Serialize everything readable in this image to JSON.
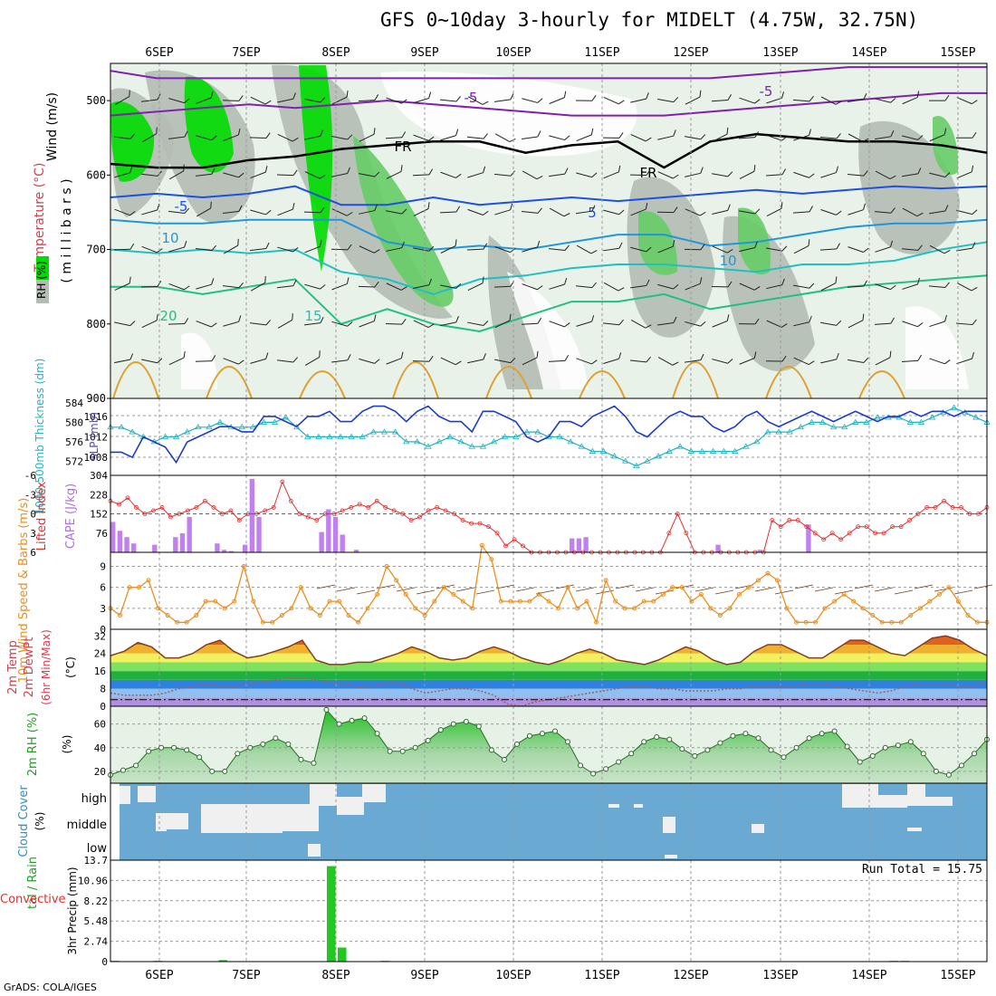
{
  "title": "GFS 0~10day 3-hourly for MIDELT (4.75W, 32.75N)",
  "credit": "GrADS: COLA/IGES",
  "dates": [
    "6SEP",
    "7SEP",
    "8SEP",
    "9SEP",
    "10SEP",
    "11SEP",
    "12SEP",
    "13SEP",
    "14SEP",
    "15SEP"
  ],
  "colors": {
    "rh_green": "#00dd00",
    "rh_gray": "#b4bcb4",
    "rh_light": "#e8f2e8",
    "slp": "#1e3cc8",
    "thickness": "#20b4c0",
    "cape": "#c080f0",
    "lifted_index": "#e03030",
    "wind_speed": "#e89020",
    "cloud_blue": "#6aaad2",
    "precip": "#20c820"
  },
  "chart_data": [
    {
      "type": "area",
      "panel": "upper-air",
      "ylabel_rh": "RH (%)",
      "ylabel_temp": "Temperature (°C)",
      "ylabel_wind": "Wind (m/s)",
      "ylabel_p": "( m i l l i b a r s )",
      "yticks": [
        500,
        600,
        700,
        800,
        900
      ],
      "ylim": [
        450,
        900
      ],
      "temperature_contour_labels": [
        "-5",
        "-5",
        "FR",
        "FR",
        "-5",
        "5",
        "10",
        "10",
        "15",
        "20"
      ],
      "isotherms": [
        {
          "label": "-5",
          "color": "#8020b0",
          "values_p": [
            460,
            470,
            470,
            470,
            470,
            470,
            470,
            470,
            470,
            470,
            470,
            470,
            470,
            470,
            465,
            460,
            455,
            455,
            455,
            455
          ]
        },
        {
          "label": "-5",
          "color": "#8020b0",
          "values_p": [
            520,
            515,
            510,
            505,
            510,
            505,
            500,
            505,
            510,
            515,
            520,
            520,
            520,
            515,
            510,
            505,
            500,
            495,
            490,
            490
          ]
        },
        {
          "label": "FR",
          "color": "#000000",
          "values_p": [
            585,
            590,
            590,
            580,
            575,
            565,
            560,
            555,
            555,
            570,
            560,
            555,
            590,
            555,
            545,
            550,
            555,
            555,
            560,
            570
          ]
        },
        {
          "label": "-5",
          "color": "#1e50e0",
          "values_p": [
            630,
            625,
            630,
            625,
            615,
            640,
            640,
            630,
            640,
            635,
            630,
            635,
            630,
            625,
            620,
            625,
            620,
            615,
            618,
            615
          ]
        },
        {
          "label": "10",
          "color": "#1e96dc",
          "values_p": [
            660,
            665,
            665,
            660,
            660,
            660,
            690,
            700,
            695,
            700,
            690,
            680,
            680,
            695,
            690,
            680,
            670,
            665,
            665,
            660
          ]
        },
        {
          "label": "15",
          "color": "#20c0c0",
          "values_p": [
            700,
            705,
            700,
            705,
            700,
            730,
            740,
            760,
            740,
            735,
            725,
            720,
            720,
            725,
            730,
            720,
            720,
            715,
            700,
            690
          ]
        },
        {
          "label": "20",
          "color": "#20c080",
          "values_p": [
            750,
            750,
            760,
            750,
            740,
            800,
            780,
            800,
            810,
            790,
            770,
            770,
            760,
            780,
            770,
            760,
            750,
            745,
            740,
            735
          ]
        }
      ]
    },
    {
      "type": "line",
      "panel": "slp-thickness",
      "ylabel_left": "1000-500mb Thickness (dm)",
      "ylabel_right": "SLP (mb)",
      "thickness_ticks": [
        572,
        576,
        580,
        584
      ],
      "slp_ticks": [
        1008,
        1012,
        1016
      ],
      "thickness_lim": [
        570,
        584
      ],
      "slp": [
        1009,
        1009,
        1008,
        1012,
        1011,
        1010,
        1007,
        1011,
        1012,
        1013,
        1014,
        1014,
        1013,
        1013,
        1016,
        1016,
        1015,
        1014,
        1016,
        1016,
        1017,
        1015,
        1015,
        1017,
        1018,
        1018,
        1017,
        1015,
        1017,
        1018,
        1016,
        1015,
        1015,
        1013,
        1017,
        1017,
        1016,
        1015,
        1012,
        1011,
        1012,
        1015,
        1015,
        1014,
        1016,
        1017,
        1018,
        1016,
        1013,
        1012,
        1014,
        1016,
        1017,
        1016,
        1016,
        1014,
        1013,
        1014,
        1016,
        1017,
        1015,
        1014,
        1015,
        1016,
        1017,
        1016,
        1015,
        1016,
        1017,
        1016,
        1015,
        1016,
        1016,
        1017,
        1016,
        1017,
        1017,
        1016,
        1017,
        1017,
        1017
      ],
      "thickness": [
        579,
        579,
        578,
        577,
        576,
        577,
        577,
        578,
        579,
        579,
        580,
        579,
        579,
        579,
        580,
        580,
        581,
        579,
        577,
        577,
        577,
        577,
        577,
        577,
        578,
        578,
        578,
        576,
        576,
        575,
        576,
        577,
        576,
        575,
        575,
        576,
        577,
        577,
        578,
        578,
        577,
        577,
        576,
        575,
        574,
        574,
        573,
        572,
        571,
        572,
        573,
        574,
        575,
        574,
        574,
        574,
        574,
        574,
        575,
        576,
        578,
        578,
        578,
        579,
        580,
        580,
        579,
        579,
        580,
        580,
        581,
        581,
        581,
        580,
        580,
        581,
        582,
        583,
        582,
        581,
        580
      ]
    },
    {
      "type": "bar",
      "panel": "cape-li",
      "ylabel_left": "Lifted Index",
      "ylabel_right": "CAPE (J/kg)",
      "li_ticks": [
        -6,
        -3,
        0,
        3,
        6
      ],
      "cape_ticks": [
        76,
        152,
        228,
        304
      ],
      "cape_lim": [
        0,
        304
      ],
      "cape": [
        120,
        85,
        60,
        35,
        0,
        0,
        30,
        0,
        0,
        60,
        75,
        140,
        0,
        0,
        0,
        35,
        10,
        5,
        0,
        30,
        290,
        140,
        0,
        0,
        0,
        0,
        0,
        0,
        0,
        0,
        80,
        170,
        140,
        70,
        0,
        10,
        0,
        0,
        0,
        0,
        0,
        0,
        0,
        0,
        0,
        0,
        0,
        0,
        0,
        0,
        0,
        0,
        0,
        0,
        0,
        0,
        0,
        0,
        0,
        0,
        0,
        0,
        0,
        0,
        0,
        0,
        55,
        55,
        60,
        0,
        0,
        0,
        0,
        0,
        0,
        0,
        0,
        0,
        0,
        0,
        0,
        0,
        0,
        0,
        0,
        0,
        0,
        30,
        0,
        0,
        0,
        0,
        0,
        10,
        0,
        0,
        0,
        0,
        0,
        0,
        110,
        0,
        0,
        0,
        0,
        0,
        0,
        0,
        0,
        0,
        0,
        0,
        0,
        0,
        0,
        0,
        0,
        0,
        0,
        0,
        0,
        0,
        0,
        0,
        0,
        0
      ],
      "li": [
        -2,
        -1.5,
        -2.5,
        -1,
        0,
        -0.5,
        -1,
        0.5,
        0,
        -0.5,
        -1,
        -2,
        -1,
        0,
        -0.5,
        1,
        0,
        0,
        -0.5,
        -1,
        -5,
        -2,
        0,
        0.5,
        1,
        0,
        0,
        -0.5,
        -1,
        -1.5,
        -1,
        -2,
        -1,
        -0.5,
        0,
        1,
        0.5,
        -0.5,
        -1,
        -0.5,
        0,
        1,
        1.5,
        1.5,
        2,
        3,
        5,
        4,
        5,
        6,
        6,
        6,
        6,
        6,
        6,
        6,
        6,
        6,
        6,
        6,
        6,
        6,
        6,
        6,
        6,
        3,
        0,
        3,
        6,
        6,
        6,
        6,
        6,
        6,
        6,
        6,
        6,
        1,
        2,
        1,
        1,
        2,
        3,
        4,
        3,
        4,
        3,
        2,
        2,
        3,
        3,
        2,
        2,
        1,
        0,
        -1,
        -1,
        -2,
        -1,
        -1,
        0,
        0,
        -1
      ]
    },
    {
      "type": "line",
      "panel": "wind10m",
      "ylabel": "10m Wind Speed & Barbs (m/s)",
      "yticks": [
        0,
        3,
        6,
        9
      ],
      "ylim": [
        0,
        11
      ],
      "speed": [
        3,
        2,
        6,
        6,
        7,
        3,
        2,
        1,
        1,
        2,
        4,
        4,
        3,
        4,
        9,
        4,
        1,
        1,
        2,
        3,
        6,
        3,
        2,
        4,
        4,
        2,
        1,
        3,
        5,
        9,
        7,
        5,
        3,
        2,
        4,
        6,
        5,
        4,
        3,
        12,
        10,
        4,
        4,
        4,
        4,
        5,
        4,
        3,
        6,
        3,
        4,
        1,
        7,
        4,
        3,
        3,
        4,
        4,
        5,
        6,
        6,
        4,
        5,
        3,
        2,
        3,
        5,
        6,
        7,
        8,
        7,
        3,
        1,
        1,
        1,
        3,
        4,
        5,
        4,
        3,
        2,
        1,
        1,
        1,
        2,
        3,
        4,
        5,
        6,
        4,
        2,
        1,
        1
      ]
    },
    {
      "type": "area",
      "panel": "temp2m",
      "ylabel": "2m Temp 2m DewPt (6hr Min/Max) (°C)",
      "yticks": [
        0,
        8,
        16,
        24,
        32
      ],
      "ylim": [
        0,
        35
      ],
      "temp": [
        23,
        25,
        29,
        27,
        22,
        22,
        24,
        28,
        30,
        25,
        22,
        23,
        25,
        27,
        30,
        21,
        19,
        19,
        20,
        20,
        22,
        24,
        27,
        25,
        22,
        21,
        22,
        25,
        27,
        25,
        22,
        20,
        19,
        21,
        24,
        26,
        24,
        21,
        20,
        19,
        21,
        24,
        27,
        25,
        21,
        19,
        20,
        25,
        28,
        28,
        25,
        22,
        22,
        26,
        30,
        30,
        27,
        24,
        23,
        27,
        31,
        32,
        30,
        26,
        23
      ],
      "dewpt": [
        6,
        5,
        5,
        5,
        6,
        8,
        9,
        10,
        9,
        9,
        10,
        11,
        12,
        13,
        13,
        12,
        11,
        10,
        9,
        9,
        10,
        11,
        8,
        6,
        7,
        8,
        8,
        7,
        5,
        1,
        0,
        2,
        3,
        4,
        5,
        6,
        7,
        8,
        9,
        9,
        8,
        8,
        7,
        7,
        7,
        8,
        8,
        9,
        9,
        9,
        9,
        10,
        10,
        9,
        8,
        7,
        6,
        7,
        9,
        10,
        10,
        10,
        9,
        9,
        11
      ]
    },
    {
      "type": "area",
      "panel": "rh2m",
      "ylabel": "2m RH (%)",
      "yticks": [
        20,
        40,
        60
      ],
      "ylim": [
        10,
        75
      ],
      "rh": [
        17,
        21,
        25,
        37,
        40,
        40,
        38,
        32,
        20,
        20,
        35,
        40,
        43,
        48,
        43,
        30,
        27,
        72,
        60,
        63,
        65,
        52,
        37,
        37,
        40,
        46,
        55,
        60,
        62,
        58,
        38,
        30,
        43,
        50,
        52,
        54,
        45,
        25,
        18,
        22,
        28,
        35,
        45,
        49,
        47,
        39,
        33,
        38,
        44,
        50,
        52,
        48,
        38,
        32,
        40,
        48,
        52,
        54,
        41,
        28,
        33,
        40,
        42,
        45,
        35,
        20,
        17,
        25,
        35,
        47
      ]
    },
    {
      "type": "heatmap",
      "panel": "cloud",
      "ylabel": "Cloud Cover (%)",
      "levels": [
        "high",
        "middle",
        "low"
      ]
    },
    {
      "type": "bar",
      "panel": "precip",
      "ylabel": "3hr Precip (mm)",
      "ylabel_extra": "Total / Rain Convective",
      "yticks": [
        0,
        2.74,
        5.48,
        8.22,
        10.96,
        13.7
      ],
      "ylim": [
        0,
        13.7
      ],
      "run_total": "Run Total = 15.75",
      "precip": [
        0.1,
        0,
        0,
        0,
        0.1,
        0,
        0,
        0,
        0,
        0,
        0.2,
        0,
        0,
        0,
        0,
        0,
        0,
        0,
        0,
        0,
        12.9,
        1.9,
        0,
        0,
        0,
        0.1,
        0,
        0,
        0,
        0,
        0,
        0,
        0,
        0,
        0,
        0,
        0,
        0,
        0,
        0,
        0,
        0,
        0,
        0,
        0,
        0,
        0,
        0,
        0,
        0,
        0,
        0,
        0,
        0,
        0,
        0,
        0,
        0,
        0,
        0,
        0,
        0,
        0,
        0,
        0,
        0,
        0,
        0,
        0,
        0,
        0,
        0,
        0.1,
        0.1,
        0,
        0,
        0,
        0,
        0,
        0,
        0
      ]
    }
  ]
}
